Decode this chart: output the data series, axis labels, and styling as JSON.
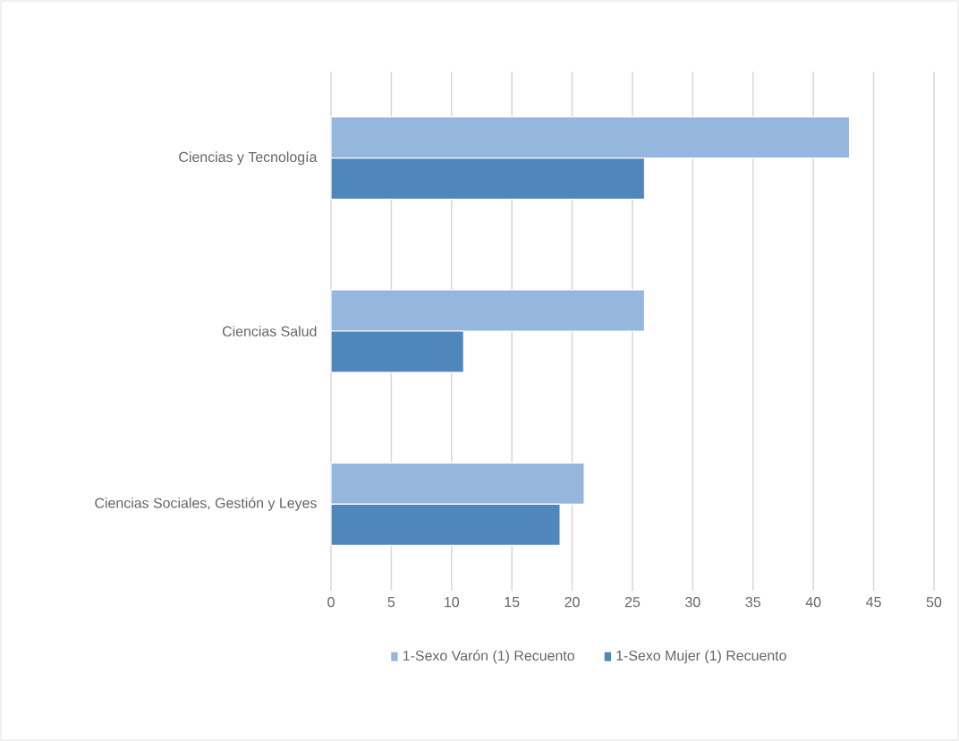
{
  "chart_data": {
    "type": "bar",
    "orientation": "horizontal",
    "categories": [
      "Ciencias y Tecnología",
      "Ciencias Salud",
      "Ciencias Sociales, Gestión y Leyes"
    ],
    "series": [
      {
        "name": "1-Sexo Varón (1) Recuento",
        "color": "#95b6dd",
        "values": [
          43,
          26,
          21
        ]
      },
      {
        "name": "1-Sexo Mujer (1) Recuento",
        "color": "#4f86bb",
        "values": [
          26,
          11,
          19
        ]
      }
    ],
    "xlim": [
      0,
      50
    ],
    "xticks": [
      0,
      5,
      10,
      15,
      20,
      25,
      30,
      35,
      40,
      45,
      50
    ],
    "grid": "x",
    "legend": "bottom"
  }
}
